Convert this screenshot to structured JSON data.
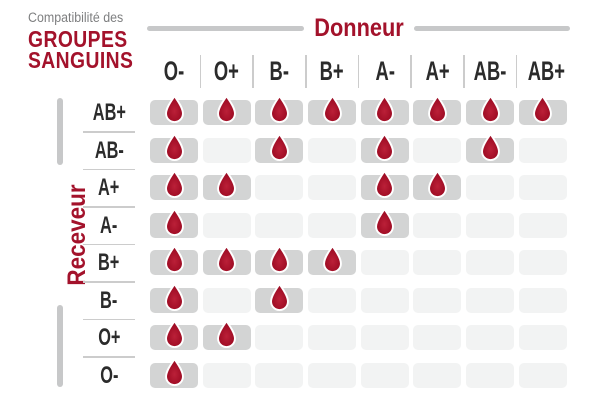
{
  "title": {
    "subtitle": "Compatibilité des",
    "main_line1": "GROUPES",
    "main_line2": "SANGUINS"
  },
  "axes": {
    "donor": "Donneur",
    "recipient": "Receveur"
  },
  "chart_data": {
    "type": "heatmap",
    "title": "Compatibilité des GROUPES SANGUINS",
    "x_axis_label": "Donneur",
    "y_axis_label": "Receveur",
    "donors": [
      "O-",
      "O+",
      "B-",
      "B+",
      "A-",
      "A+",
      "AB-",
      "AB+"
    ],
    "recipients": [
      "AB+",
      "AB-",
      "A+",
      "A-",
      "B+",
      "B-",
      "O+",
      "O-"
    ],
    "matrix": [
      [
        1,
        1,
        1,
        1,
        1,
        1,
        1,
        1
      ],
      [
        1,
        0,
        1,
        0,
        1,
        0,
        1,
        0
      ],
      [
        1,
        1,
        0,
        0,
        1,
        1,
        0,
        0
      ],
      [
        1,
        0,
        0,
        0,
        1,
        0,
        0,
        0
      ],
      [
        1,
        1,
        1,
        1,
        0,
        0,
        0,
        0
      ],
      [
        1,
        0,
        1,
        0,
        0,
        0,
        0,
        0
      ],
      [
        1,
        1,
        0,
        0,
        0,
        0,
        0,
        0
      ],
      [
        1,
        0,
        0,
        0,
        0,
        0,
        0,
        0
      ]
    ],
    "compatible_marker": "blood-drop-icon"
  },
  "colors": {
    "accent_red": "#a3122b",
    "drop_red": "#a30f27",
    "filled_cell": "#d3d4d4",
    "empty_cell": "#f2f3f3",
    "rule_gray": "#c7c8c9",
    "separator_gray": "#cccccc",
    "subtitle_gray": "#7e7f80",
    "label_dark": "#2b2b2b"
  }
}
